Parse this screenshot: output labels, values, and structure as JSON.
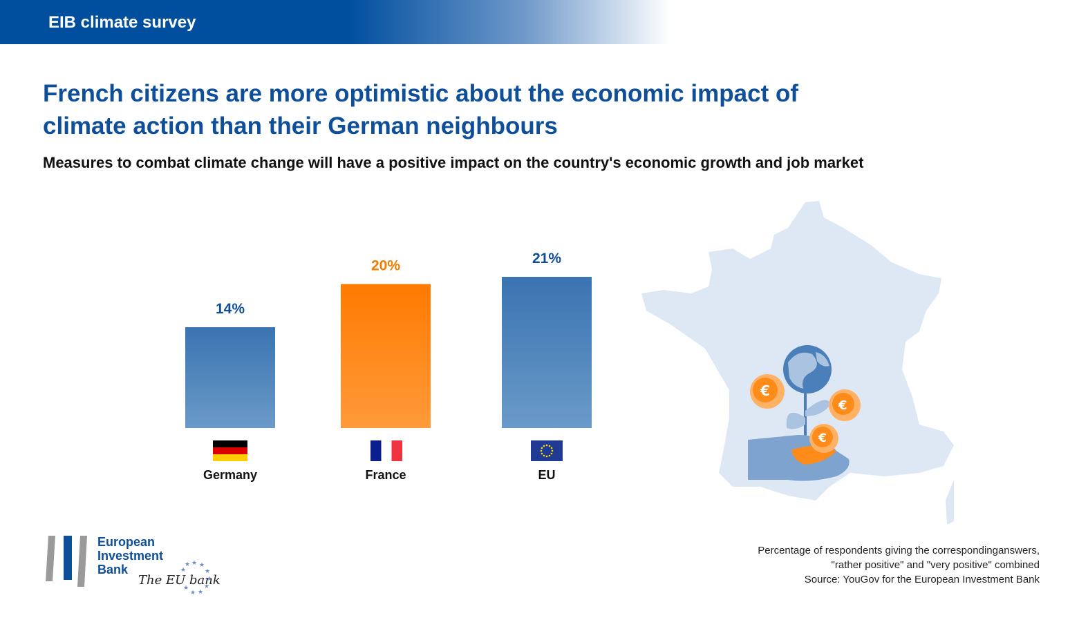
{
  "header": {
    "title": "EIB climate survey"
  },
  "headline": "French citizens are more optimistic about the economic impact of climate action than their German neighbours",
  "subtitle": "Measures to combat climate change will have a positive impact on the country's economic growth and job market",
  "chart_data": {
    "type": "bar",
    "title": "Measures to combat climate change will have a positive impact on the country's economic growth and job market",
    "categories": [
      "Germany",
      "France",
      "EU"
    ],
    "values": [
      14,
      20,
      21
    ],
    "value_labels": [
      "14%",
      "20%",
      "21%"
    ],
    "unit": "%",
    "ylim": [
      0,
      21
    ],
    "colors": [
      "#4a7fba",
      "#ff7b00",
      "#4a7fba"
    ],
    "label_colors": [
      "#0f4e99",
      "#ef7d00",
      "#0f4e99"
    ]
  },
  "footnote": {
    "line1": "Percentage of respondents giving the correspondinganswers,",
    "line2": "\"rather positive\" and \"very positive\" combined",
    "line3": "Source: YouGov for the European Investment Bank"
  },
  "logo": {
    "line1": "European",
    "line2": "Investment",
    "line3": "Bank",
    "tagline": "The EU bank"
  },
  "icons": {
    "map": "france-map-icon",
    "plant": "globe-plant-hand-icon",
    "coin_symbol": "€"
  }
}
